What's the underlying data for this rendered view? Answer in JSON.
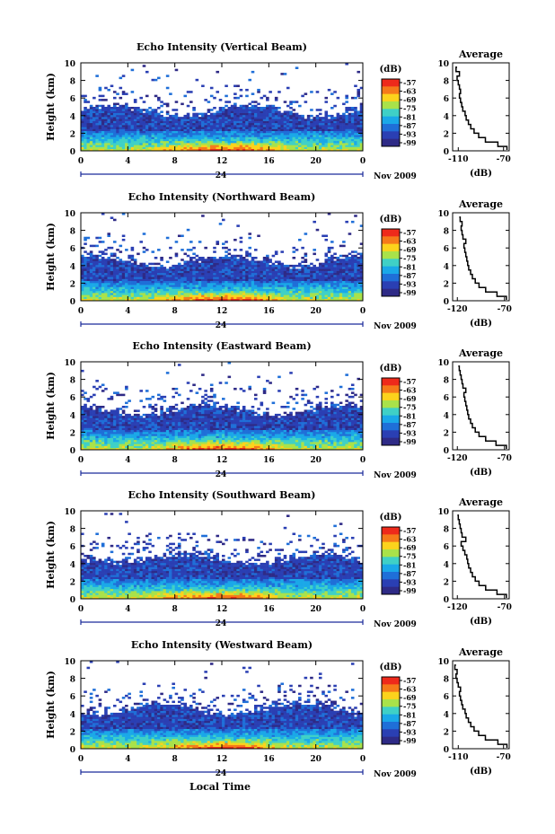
{
  "colorbar": {
    "unit": "(dB)",
    "ticks": [
      "-57",
      "-63",
      "-69",
      "-75",
      "-81",
      "-87",
      "-93",
      "-99"
    ],
    "colors": [
      "#ee2a1b",
      "#f57a1a",
      "#fcd31c",
      "#a9e24a",
      "#3fd0c6",
      "#1aa8e8",
      "#1f6fd8",
      "#2a3fb3",
      "#2e2a86"
    ]
  },
  "labels": {
    "xlabel": "Local Time",
    "ylabel": "Height (km)",
    "date": "Nov 2009",
    "day": "24",
    "avg_title": "Average",
    "avg_unit": "(dB)"
  },
  "chart_data": [
    {
      "type": "heatmap",
      "title": "Echo Intensity (Vertical Beam)",
      "x_ticks": [
        "0",
        "4",
        "8",
        "12",
        "16",
        "20",
        "0"
      ],
      "y_ticks": [
        "0",
        "2",
        "4",
        "6",
        "8",
        "10"
      ],
      "xlim": [
        0,
        24
      ],
      "ylim": [
        0,
        10
      ],
      "profile": {
        "title": "Average",
        "xlabel": "(dB)",
        "x_ticks": [
          "-110",
          "-70"
        ],
        "xlim": [
          -115,
          -65
        ],
        "height": [
          0.1,
          0.5,
          1,
          1.5,
          2,
          2.5,
          3,
          3.5,
          4,
          4.5,
          5,
          5.5,
          6,
          6.5,
          7,
          7.5,
          8,
          8.5,
          9,
          9.5
        ],
        "db": [
          -67,
          -75,
          -86,
          -92,
          -96,
          -99,
          -101,
          -103,
          -104,
          -106,
          -107,
          -108,
          -109,
          -108,
          -109,
          -110,
          -111,
          -109,
          -112,
          -111
        ]
      }
    },
    {
      "type": "heatmap",
      "title": "Echo Intensity (Northward Beam)",
      "x_ticks": [
        "0",
        "4",
        "8",
        "12",
        "16",
        "20",
        "0"
      ],
      "y_ticks": [
        "0",
        "2",
        "4",
        "6",
        "8",
        "10"
      ],
      "xlim": [
        0,
        24
      ],
      "ylim": [
        0,
        10
      ],
      "profile": {
        "title": "Average",
        "xlabel": "(dB)",
        "x_ticks": [
          "-120",
          "-70"
        ],
        "xlim": [
          -125,
          -65
        ],
        "height": [
          0.1,
          0.5,
          1,
          1.5,
          2,
          2.5,
          3,
          3.5,
          4,
          4.5,
          5,
          5.5,
          6,
          6.5,
          7,
          7.5,
          8,
          8.5,
          9,
          9.5
        ],
        "db": [
          -68,
          -78,
          -90,
          -97,
          -101,
          -104,
          -106,
          -108,
          -109,
          -110,
          -111,
          -112,
          -113,
          -111,
          -114,
          -115,
          -116,
          -115,
          -117,
          -118
        ]
      }
    },
    {
      "type": "heatmap",
      "title": "Echo Intensity (Eastward Beam)",
      "x_ticks": [
        "0",
        "4",
        "8",
        "12",
        "16",
        "20",
        "0"
      ],
      "y_ticks": [
        "0",
        "2",
        "4",
        "6",
        "8",
        "10"
      ],
      "xlim": [
        0,
        24
      ],
      "ylim": [
        0,
        10
      ],
      "profile": {
        "title": "Average",
        "xlabel": "(dB)",
        "x_ticks": [
          "-120",
          "-70"
        ],
        "xlim": [
          -125,
          -65
        ],
        "height": [
          0.1,
          0.5,
          1,
          1.5,
          2,
          2.5,
          3,
          3.5,
          4,
          4.5,
          5,
          5.5,
          6,
          6.5,
          7,
          7.5,
          8,
          8.5,
          9,
          9.5
        ],
        "db": [
          -68,
          -79,
          -90,
          -97,
          -101,
          -104,
          -106,
          -108,
          -109,
          -110,
          -111,
          -112,
          -113,
          -111,
          -114,
          -115,
          -116,
          -117,
          -118,
          -119
        ]
      }
    },
    {
      "type": "heatmap",
      "title": "Echo Intensity (Southward Beam)",
      "x_ticks": [
        "0",
        "4",
        "8",
        "12",
        "16",
        "20",
        "0"
      ],
      "y_ticks": [
        "0",
        "2",
        "4",
        "6",
        "8",
        "10"
      ],
      "xlim": [
        0,
        24
      ],
      "ylim": [
        0,
        10
      ],
      "profile": {
        "title": "Average",
        "xlabel": "(dB)",
        "x_ticks": [
          "-120",
          "-70"
        ],
        "xlim": [
          -125,
          -65
        ],
        "height": [
          0.1,
          0.5,
          1,
          1.5,
          2,
          2.5,
          3,
          3.5,
          4,
          4.5,
          5,
          5.5,
          6,
          6.5,
          7,
          7.5,
          8,
          8.5,
          9,
          9.5
        ],
        "db": [
          -68,
          -78,
          -90,
          -97,
          -101,
          -104,
          -106,
          -108,
          -109,
          -110,
          -112,
          -114,
          -116,
          -111,
          -115,
          -116,
          -117,
          -118,
          -119,
          -120
        ]
      }
    },
    {
      "type": "heatmap",
      "title": "Echo Intensity (Westward Beam)",
      "x_ticks": [
        "0",
        "4",
        "8",
        "12",
        "16",
        "20",
        "0"
      ],
      "y_ticks": [
        "0",
        "2",
        "4",
        "6",
        "8",
        "10"
      ],
      "xlim": [
        0,
        24
      ],
      "ylim": [
        0,
        10
      ],
      "profile": {
        "title": "Average",
        "xlabel": "(dB)",
        "x_ticks": [
          "-110",
          "-70"
        ],
        "xlim": [
          -115,
          -65
        ],
        "height": [
          0.1,
          0.5,
          1,
          1.5,
          2,
          2.5,
          3,
          3.5,
          4,
          4.5,
          5,
          5.5,
          6,
          6.5,
          7,
          7.5,
          8,
          8.5,
          9,
          9.5
        ],
        "db": [
          -67,
          -75,
          -86,
          -92,
          -96,
          -99,
          -101,
          -103,
          -104,
          -106,
          -107,
          -108,
          -109,
          -108,
          -110,
          -111,
          -112,
          -111,
          -113,
          -112
        ]
      }
    }
  ]
}
